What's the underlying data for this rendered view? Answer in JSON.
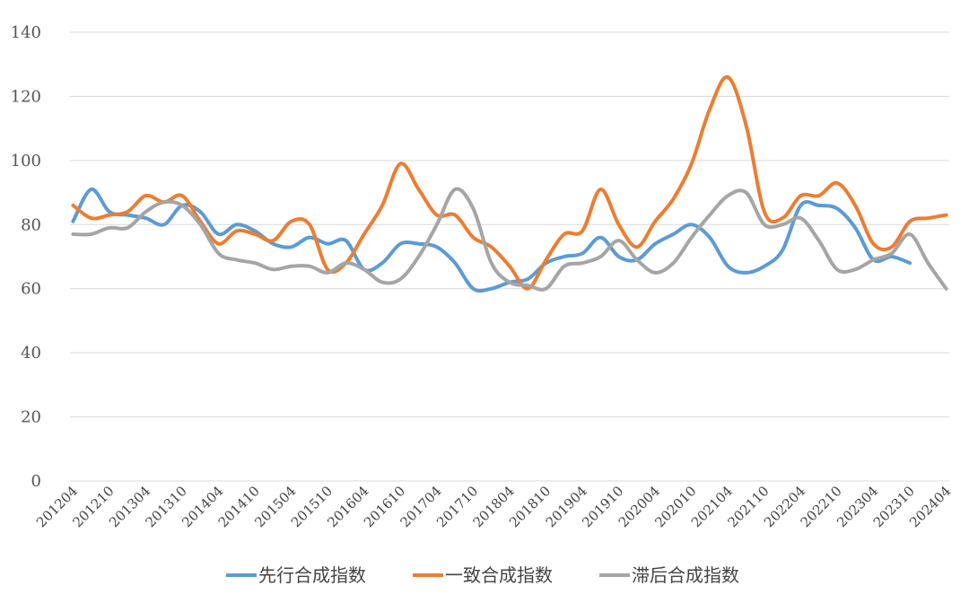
{
  "chart_data": {
    "type": "line",
    "title": "",
    "xlabel": "",
    "ylabel": "",
    "ylim": [
      0,
      140
    ],
    "yticks": [
      0,
      20,
      40,
      60,
      80,
      100,
      120,
      140
    ],
    "grid": "horizontal",
    "legend": "bottom-center",
    "x_tick_labels": [
      "201204",
      "201210",
      "201304",
      "201310",
      "201404",
      "201410",
      "201504",
      "201510",
      "201604",
      "201610",
      "201704",
      "201710",
      "201804",
      "201810",
      "201904",
      "201910",
      "202004",
      "202010",
      "202104",
      "202110",
      "202204",
      "202210",
      "202304",
      "202310",
      "202404"
    ],
    "series": [
      {
        "name": "先行合成指数",
        "color": "#5b9bd5",
        "points": [
          [
            "201204",
            81
          ],
          [
            "201207",
            91
          ],
          [
            "201210",
            84
          ],
          [
            "201301",
            83
          ],
          [
            "201304",
            82
          ],
          [
            "201307",
            80
          ],
          [
            "201310",
            86
          ],
          [
            "201401",
            84
          ],
          [
            "201404",
            77
          ],
          [
            "201407",
            80
          ],
          [
            "201410",
            78
          ],
          [
            "201501",
            74
          ],
          [
            "201504",
            73
          ],
          [
            "201507",
            76
          ],
          [
            "201510",
            74
          ],
          [
            "201601",
            75
          ],
          [
            "201604",
            66
          ],
          [
            "201607",
            68
          ],
          [
            "201610",
            74
          ],
          [
            "201701",
            74
          ],
          [
            "201704",
            73
          ],
          [
            "201707",
            68
          ],
          [
            "201710",
            60
          ],
          [
            "201801",
            60
          ],
          [
            "201804",
            62
          ],
          [
            "201807",
            63
          ],
          [
            "201810",
            68
          ],
          [
            "201901",
            70
          ],
          [
            "201904",
            71
          ],
          [
            "201907",
            76
          ],
          [
            "201910",
            70
          ],
          [
            "202001",
            69
          ],
          [
            "202004",
            74
          ],
          [
            "202007",
            77
          ],
          [
            "202010",
            80
          ],
          [
            "202101",
            76
          ],
          [
            "202104",
            67
          ],
          [
            "202107",
            65
          ],
          [
            "202110",
            67
          ],
          [
            "202201",
            72
          ],
          [
            "202204",
            86
          ],
          [
            "202207",
            86
          ],
          [
            "202210",
            85
          ],
          [
            "202301",
            79
          ],
          [
            "202304",
            69
          ],
          [
            "202307",
            70
          ],
          [
            "202310",
            68
          ]
        ]
      },
      {
        "name": "一致合成指数",
        "color": "#ed7d31",
        "points": [
          [
            "201204",
            86
          ],
          [
            "201207",
            82
          ],
          [
            "201210",
            83
          ],
          [
            "201301",
            84
          ],
          [
            "201304",
            89
          ],
          [
            "201307",
            87
          ],
          [
            "201310",
            89
          ],
          [
            "201401",
            81
          ],
          [
            "201404",
            74
          ],
          [
            "201407",
            78
          ],
          [
            "201410",
            77
          ],
          [
            "201501",
            75
          ],
          [
            "201504",
            81
          ],
          [
            "201507",
            80
          ],
          [
            "201510",
            66
          ],
          [
            "201601",
            68
          ],
          [
            "201604",
            77
          ],
          [
            "201607",
            86
          ],
          [
            "201610",
            99
          ],
          [
            "201701",
            91
          ],
          [
            "201704",
            83
          ],
          [
            "201707",
            83
          ],
          [
            "201710",
            76
          ],
          [
            "201801",
            73
          ],
          [
            "201804",
            67
          ],
          [
            "201807",
            60
          ],
          [
            "201810",
            69
          ],
          [
            "201901",
            77
          ],
          [
            "201904",
            78
          ],
          [
            "201907",
            91
          ],
          [
            "201910",
            80
          ],
          [
            "202001",
            73
          ],
          [
            "202004",
            81
          ],
          [
            "202007",
            88
          ],
          [
            "202010",
            99
          ],
          [
            "202101",
            116
          ],
          [
            "202104",
            126
          ],
          [
            "202107",
            111
          ],
          [
            "202110",
            84
          ],
          [
            "202201",
            82
          ],
          [
            "202204",
            89
          ],
          [
            "202207",
            89
          ],
          [
            "202210",
            93
          ],
          [
            "202301",
            86
          ],
          [
            "202304",
            74
          ],
          [
            "202307",
            73
          ],
          [
            "202310",
            81
          ],
          [
            "202401",
            82
          ],
          [
            "202404",
            83
          ]
        ]
      },
      {
        "name": "滞后合成指数",
        "color": "#a5a5a5",
        "points": [
          [
            "201204",
            77
          ],
          [
            "201207",
            77
          ],
          [
            "201210",
            79
          ],
          [
            "201301",
            79
          ],
          [
            "201304",
            84
          ],
          [
            "201307",
            87
          ],
          [
            "201310",
            86
          ],
          [
            "201401",
            80
          ],
          [
            "201404",
            71
          ],
          [
            "201407",
            69
          ],
          [
            "201410",
            68
          ],
          [
            "201501",
            66
          ],
          [
            "201504",
            67
          ],
          [
            "201507",
            67
          ],
          [
            "201510",
            65
          ],
          [
            "201601",
            68
          ],
          [
            "201604",
            66
          ],
          [
            "201607",
            62
          ],
          [
            "201610",
            63
          ],
          [
            "201701",
            70
          ],
          [
            "201704",
            80
          ],
          [
            "201707",
            91
          ],
          [
            "201710",
            85
          ],
          [
            "201801",
            68
          ],
          [
            "201804",
            62
          ],
          [
            "201807",
            61
          ],
          [
            "201810",
            60
          ],
          [
            "201901",
            67
          ],
          [
            "201904",
            68
          ],
          [
            "201907",
            70
          ],
          [
            "201910",
            75
          ],
          [
            "202001",
            69
          ],
          [
            "202004",
            65
          ],
          [
            "202007",
            68
          ],
          [
            "202010",
            76
          ],
          [
            "202101",
            83
          ],
          [
            "202104",
            89
          ],
          [
            "202107",
            90
          ],
          [
            "202110",
            80
          ],
          [
            "202201",
            80
          ],
          [
            "202204",
            82
          ],
          [
            "202207",
            75
          ],
          [
            "202210",
            66
          ],
          [
            "202301",
            66
          ],
          [
            "202304",
            69
          ],
          [
            "202307",
            71
          ],
          [
            "202310",
            77
          ],
          [
            "202401",
            68
          ],
          [
            "202404",
            60
          ]
        ]
      }
    ]
  }
}
